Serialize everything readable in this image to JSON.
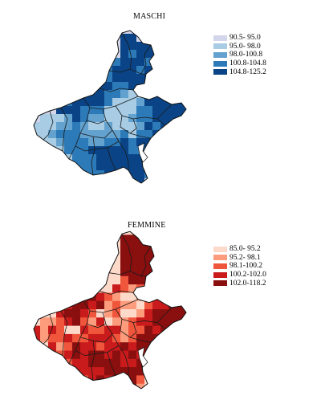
{
  "panels": [
    {
      "id": "maschi",
      "title": "MASCHI",
      "legend": [
        {
          "label": "90.5- 95.0",
          "color": "#d3d6ea"
        },
        {
          "label": "95.0- 98.0",
          "color": "#a7cce4"
        },
        {
          "label": "98.0-100.8",
          "color": "#63a2ce"
        },
        {
          "label": "100.8-104.8",
          "color": "#2c7ab8"
        },
        {
          "label": "104.8-125.2",
          "color": "#0a4486"
        }
      ]
    },
    {
      "id": "femmine",
      "title": "FEMMINE",
      "legend": [
        {
          "label": "85.0- 95.2",
          "color": "#fdd9ca"
        },
        {
          "label": "95.2- 98.1",
          "color": "#fc9c7c"
        },
        {
          "label": "98.1-100.2",
          "color": "#f0563c"
        },
        {
          "label": "100.2-102.0",
          "color": "#c91b1c"
        },
        {
          "label": "102.0-118.2",
          "color": "#8a0f0f"
        }
      ]
    }
  ]
}
